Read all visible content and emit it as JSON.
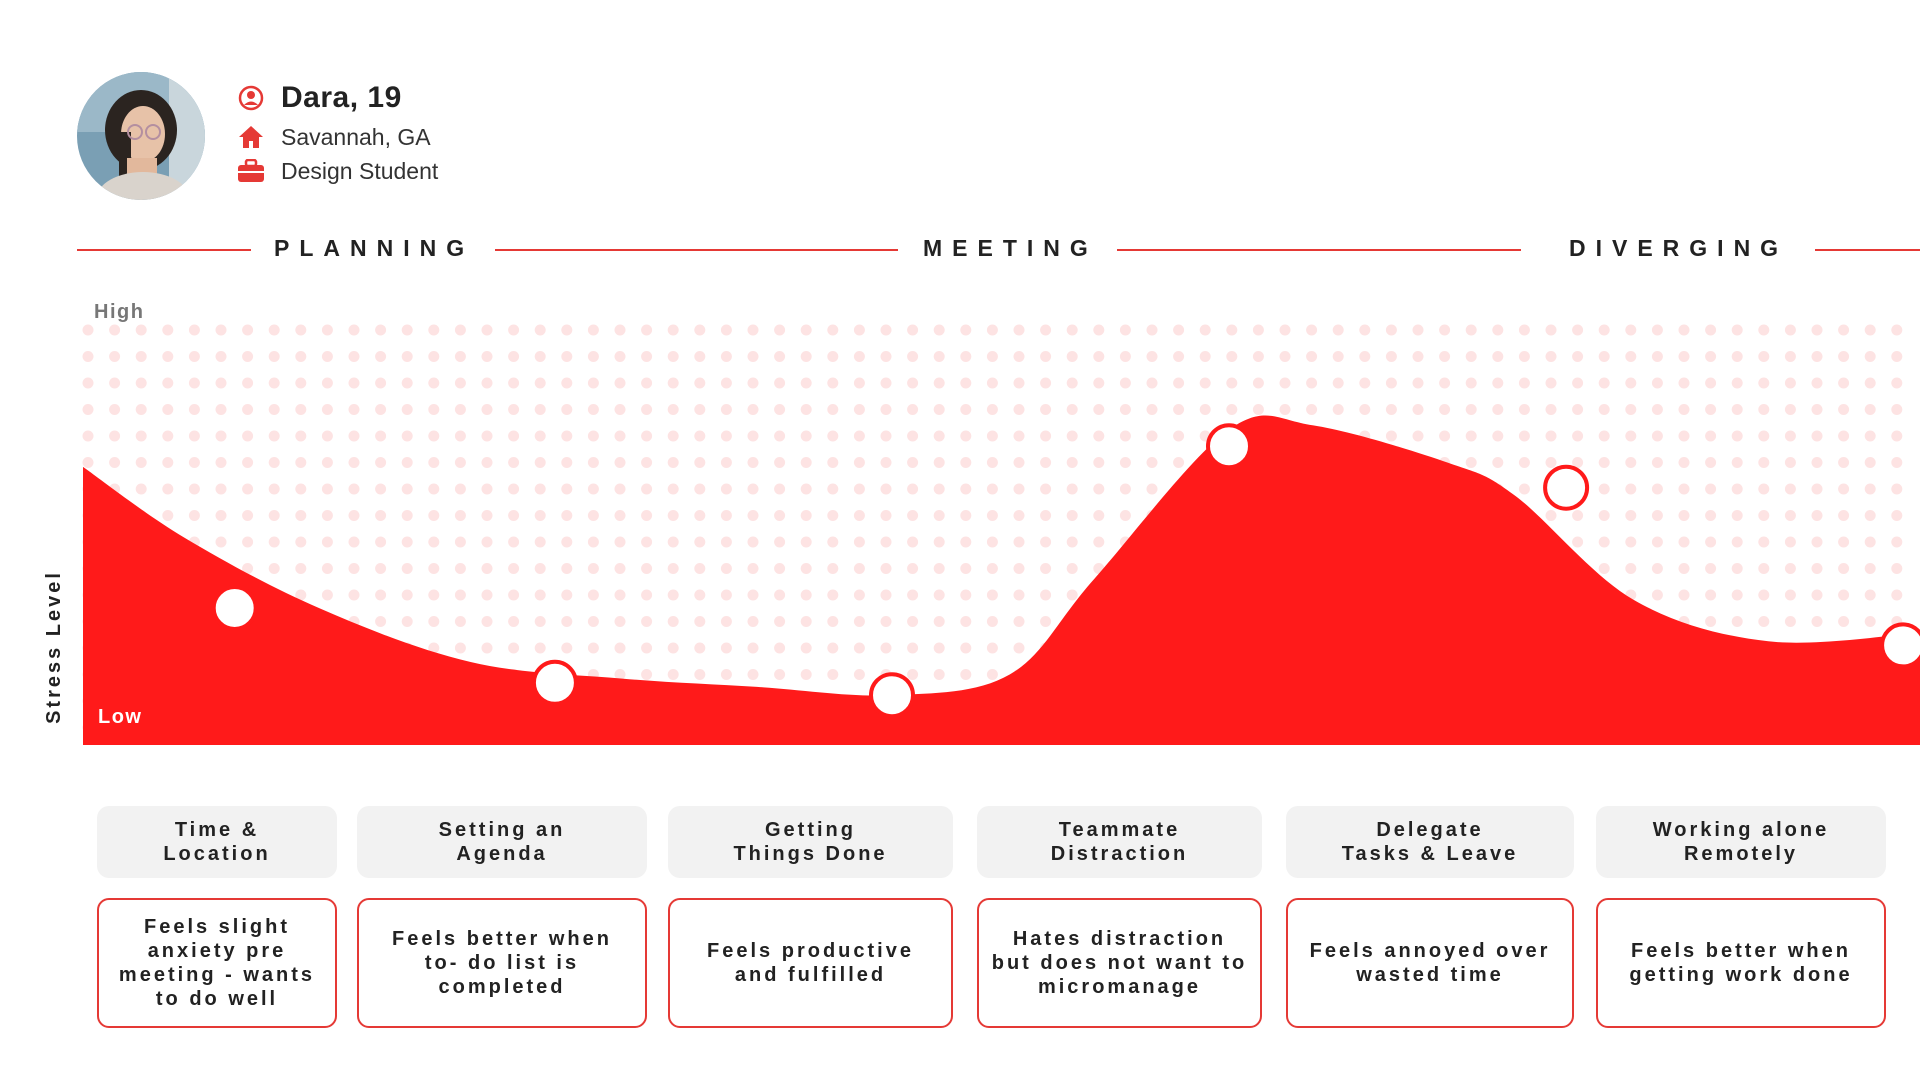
{
  "persona": {
    "name": "Dara, 19",
    "location": "Savannah, GA",
    "occupation": "Design Student",
    "icons": [
      "user-circle-icon",
      "home-icon",
      "briefcase-icon"
    ]
  },
  "phases": [
    "PLANNING",
    "MEETING",
    "DIVERGING"
  ],
  "colors": {
    "accent": "#e53935",
    "curve": "#ff1a1a",
    "dots": "#fde3e3",
    "card": "#f2f2f2"
  },
  "chart_data": {
    "type": "area",
    "ylabel": "Stress Level",
    "ytick_high": "High",
    "ytick_low": "Low",
    "ylim": [
      0,
      100
    ],
    "grid": "dotted",
    "curve": {
      "x": [
        0,
        0.3,
        0.7,
        1.15,
        1.6,
        2.0,
        2.4,
        2.75,
        3.0,
        3.4,
        3.65,
        4.05,
        4.25,
        4.6,
        5.0,
        5.45
      ],
      "y": [
        67,
        50,
        33,
        20,
        16,
        14,
        12,
        17,
        40,
        76,
        77,
        68,
        60,
        35,
        25,
        27
      ]
    },
    "points": [
      {
        "x": 0.45,
        "y": 33
      },
      {
        "x": 1.4,
        "y": 15
      },
      {
        "x": 2.4,
        "y": 12
      },
      {
        "x": 3.4,
        "y": 72
      },
      {
        "x": 4.4,
        "y": 62
      },
      {
        "x": 5.4,
        "y": 24
      }
    ]
  },
  "stages": [
    {
      "title": "Time &\nLocation",
      "note": "Feels slight anxiety pre meeting - wants to do well"
    },
    {
      "title": "Setting an\nAgenda",
      "note": "Feels better when to- do list is completed"
    },
    {
      "title": "Getting\nThings Done",
      "note": "Feels productive and fulfilled"
    },
    {
      "title": "Teammate\nDistraction",
      "note": "Hates distraction but does not want to micromanage"
    },
    {
      "title": "Delegate\nTasks & Leave",
      "note": "Feels annoyed over wasted time"
    },
    {
      "title": "Working alone\nRemotely",
      "note": "Feels better when getting work done"
    }
  ]
}
